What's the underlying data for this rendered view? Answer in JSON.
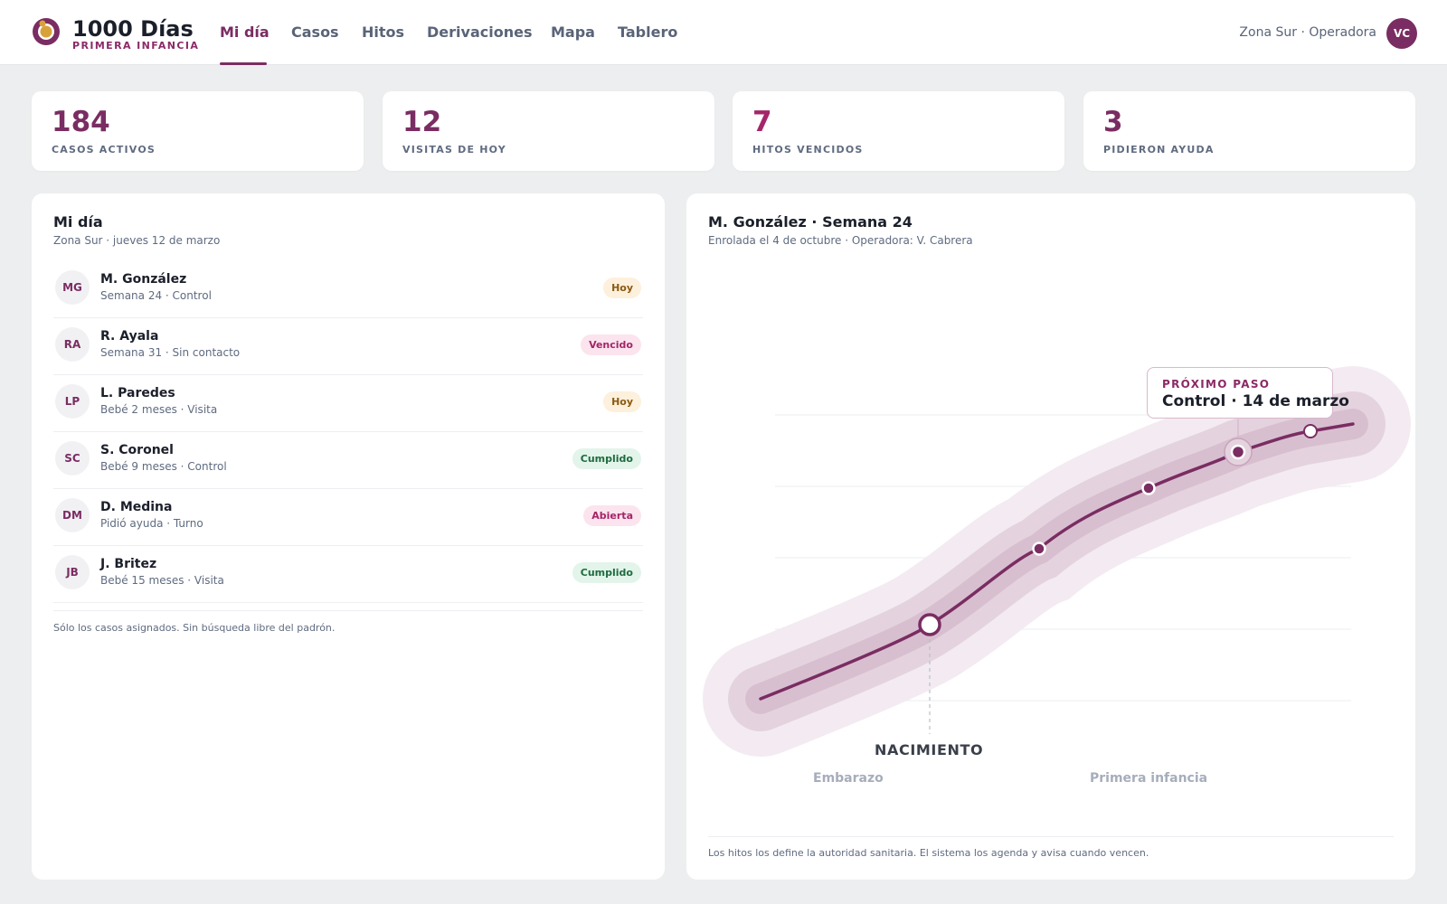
{
  "app": {
    "title": "1000 Días",
    "subtitle": "PRIMERA INFANCIA",
    "accent": "#7a2d62",
    "logo_icon": "ring-logo-icon"
  },
  "nav": {
    "items": [
      {
        "label": "Mi día",
        "active": true
      },
      {
        "label": "Casos",
        "active": false
      },
      {
        "label": "Hitos",
        "active": false
      },
      {
        "label": "Derivaciones",
        "active": false
      },
      {
        "label": "Mapa",
        "active": false
      },
      {
        "label": "Tablero",
        "active": false
      }
    ]
  },
  "user": {
    "label": "Zona Sur · Operadora",
    "initials": "VC"
  },
  "stats": [
    {
      "value": "184",
      "label": "CASOS ACTIVOS"
    },
    {
      "value": "12",
      "label": "VISITAS DE HOY"
    },
    {
      "value": "7",
      "label": "HITOS VENCIDOS"
    },
    {
      "value": "3",
      "label": "PIDIERON AYUDA"
    }
  ],
  "myday": {
    "title": "Mi día",
    "subtitle": "Zona Sur · jueves 12 de marzo",
    "cases": [
      {
        "initials": "MG",
        "name": "M. González",
        "detail": "Semana 24 · Control",
        "status": "Hoy",
        "status_type": "today"
      },
      {
        "initials": "RA",
        "name": "R. Ayala",
        "detail": "Semana 31 · Sin contacto",
        "status": "Vencido",
        "status_type": "overdue"
      },
      {
        "initials": "LP",
        "name": "L. Paredes",
        "detail": "Bebé 2 meses · Visita",
        "status": "Hoy",
        "status_type": "today"
      },
      {
        "initials": "SC",
        "name": "S. Coronel",
        "detail": "Bebé 9 meses · Control",
        "status": "Cumplido",
        "status_type": "done"
      },
      {
        "initials": "DM",
        "name": "D. Medina",
        "detail": "Pidió ayuda · Turno",
        "status": "Abierta",
        "status_type": "open"
      },
      {
        "initials": "JB",
        "name": "J. Britez",
        "detail": "Bebé 15 meses · Visita",
        "status": "Cumplido",
        "status_type": "done"
      }
    ],
    "note": "Sólo los casos asignados. Sin búsqueda libre del padrón."
  },
  "case_detail": {
    "title": "M. González · Semana 24",
    "subtitle": "Enrolada el 4 de octubre · Operadora: V. Cabrera",
    "next_step_label": "PRÓXIMO PASO",
    "next_step_value": "Control · 14 de marzo",
    "birth_label": "NACIMIENTO",
    "phase_left": "Embarazo",
    "phase_right": "Primera infancia",
    "note": "Los hitos los define la autoridad sanitaria. El sistema los agenda y avisa cuando vencen."
  }
}
